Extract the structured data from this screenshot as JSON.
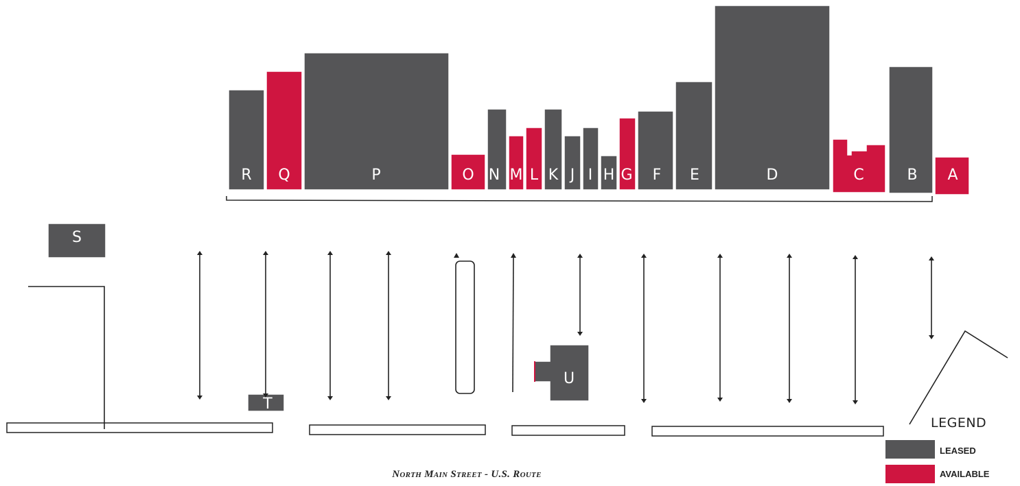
{
  "colors": {
    "leased": "#555557",
    "available": "#cf1540",
    "line": "#222222"
  },
  "units": [
    {
      "id": "R",
      "status": "leased"
    },
    {
      "id": "Q",
      "status": "available"
    },
    {
      "id": "P",
      "status": "leased"
    },
    {
      "id": "O",
      "status": "available"
    },
    {
      "id": "N",
      "status": "leased"
    },
    {
      "id": "M",
      "status": "available"
    },
    {
      "id": "L",
      "status": "available"
    },
    {
      "id": "K",
      "status": "leased"
    },
    {
      "id": "J",
      "status": "leased"
    },
    {
      "id": "I",
      "status": "leased"
    },
    {
      "id": "H",
      "status": "leased"
    },
    {
      "id": "G",
      "status": "available"
    },
    {
      "id": "F",
      "status": "leased"
    },
    {
      "id": "E",
      "status": "leased"
    },
    {
      "id": "D",
      "status": "leased"
    },
    {
      "id": "C",
      "status": "available"
    },
    {
      "id": "B",
      "status": "leased"
    },
    {
      "id": "A",
      "status": "available"
    },
    {
      "id": "S",
      "status": "leased"
    },
    {
      "id": "T",
      "status": "leased"
    },
    {
      "id": "U",
      "status": "leased"
    }
  ],
  "legend": {
    "title": "LEGEND",
    "items": [
      {
        "label": "LEASED",
        "status": "leased"
      },
      {
        "label": "AVAILABLE",
        "status": "available"
      }
    ]
  },
  "street_label": "North Main Street - U.S. Route"
}
